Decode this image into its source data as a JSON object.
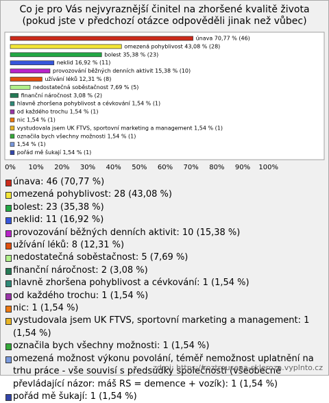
{
  "chart_data": {
    "type": "bar",
    "orientation": "horizontal",
    "title": "Co je pro Vás nejvyraznější činitel na zhoršené kvalitě života (pokud jste v předchozí otázce odpověděli jinak než vůbec)",
    "categories": [
      "únava",
      "omezená pohyblivost",
      "bolest",
      "neklid",
      "provozování běžných denních aktivit",
      "užívání léků",
      "nedostatečná soběstačnost",
      "finanční náročnost",
      "hlavně zhoršena pohyblivost a cévkování",
      "od každého trochu",
      "nic",
      "vystudovala jsem UK FTVS, sportovní marketing a management",
      "označila bych všechny možnosti",
      "omezená možnost výkonu povolání, téměř nemožnost uplatnění na trhu práce - vše souvisí s předsudky společnosti (všeobecně převládající názor: máš RS = demence + vozík)",
      "pořád mě šukají"
    ],
    "values": [
      70.77,
      43.08,
      35.38,
      16.92,
      15.38,
      12.31,
      7.69,
      3.08,
      1.54,
      1.54,
      1.54,
      1.54,
      1.54,
      1.54,
      1.54
    ],
    "value_labels": [
      "únava 70,77 % (46)",
      "omezená pohyblivost 43,08 % (28)",
      "bolest 35,38 % (23)",
      "neklid 16,92 % (11)",
      "provozování běžných denních aktivit 15,38 % (10)",
      "užívání léků 12,31 % (8)",
      "nedostatečná soběstačnost 7,69 % (5)",
      "finanční náročnost 3,08 % (2)",
      "hlavně zhoršena pohyblivost a cévkování 1,54 % (1)",
      "od každého trochu 1,54 % (1)",
      "nic 1,54 % (1)",
      "vystudovala jsem UK FTVS, sportovní marketing a management 1,54 % (1)",
      "označila bych všechny možnosti 1,54 % (1)",
      "1,54 % (1)",
      "pořád mě šukají 1,54 % (1)"
    ],
    "legend_labels": [
      "únava: 46 (70,77 %)",
      "omezená pohyblivost: 28 (43,08 %)",
      "bolest: 23 (35,38 %)",
      "neklid: 11 (16,92 %)",
      "provozování běžných denních aktivit: 10 (15,38 %)",
      "užívání léků: 8 (12,31 %)",
      "nedostatečná soběstačnost: 5 (7,69 %)",
      "finanční náročnost: 2 (3,08 %)",
      "hlavně zhoršena pohyblivost a cévkování: 1 (1,54 %)",
      "od každého trochu: 1 (1,54 %)",
      "nic: 1 (1,54 %)",
      "vystudovala jsem UK FTVS, sportovní marketing a management: 1 (1,54 %)",
      "označila bych všechny možnosti: 1 (1,54 %)",
      "omezená možnost výkonu povolání, téměř nemožnost uplatnění na trhu práce - vše souvisí s předsudky společnosti (všeobecně převládající názor: máš RS = demence + vozík): 1 (1,54 %)",
      "pořád mě šukají: 1 (1,54 %)"
    ],
    "colors": [
      "#cc2a1a",
      "#f2e536",
      "#23a845",
      "#3656dc",
      "#b824c8",
      "#e0500f",
      "#b0f08a",
      "#257a56",
      "#2f8a78",
      "#9a35a8",
      "#ee7a12",
      "#e8b525",
      "#35aa3a",
      "#7a9ade",
      "#3346aa"
    ],
    "xlim": [
      0,
      120
    ],
    "xticks": [
      {
        "value": 0,
        "label": "0%"
      },
      {
        "value": 10,
        "label": "10%"
      },
      {
        "value": 20,
        "label": "20%"
      },
      {
        "value": 30,
        "label": "30%"
      },
      {
        "value": 40,
        "label": "40%"
      },
      {
        "value": 50,
        "label": "50%"
      },
      {
        "value": 60,
        "label": "60%"
      },
      {
        "value": 70,
        "label": "70%"
      },
      {
        "value": 80,
        "label": "80%"
      },
      {
        "value": 90,
        "label": "90%"
      },
      {
        "value": 100,
        "label": "100%"
      }
    ],
    "source": "zdroj: https://roztrousena-skleroza.vyplnto.cz"
  }
}
